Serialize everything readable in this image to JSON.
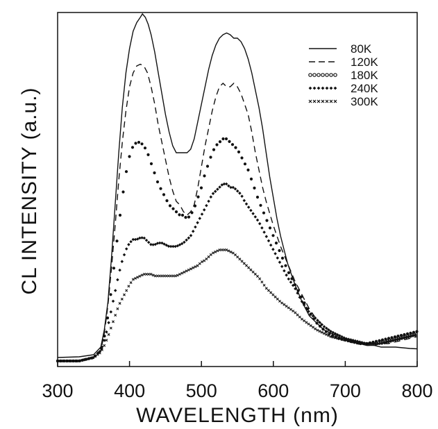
{
  "chart_data": {
    "type": "line",
    "title": "",
    "xlabel": "WAVELENGTH  (nm)",
    "ylabel": "CL INTENSITY  (a.u.)",
    "xlim": [
      300,
      800
    ],
    "ylim": [
      0,
      1
    ],
    "x_ticks": [
      "300",
      "400",
      "500",
      "600",
      "700",
      "800"
    ],
    "y_ticks": [],
    "grid": false,
    "legend_position": "top-right",
    "series": [
      {
        "name": "80K",
        "style": "solid",
        "x": [
          300,
          330,
          350,
          360,
          365,
          370,
          375,
          380,
          385,
          390,
          395,
          400,
          405,
          410,
          415,
          418,
          422,
          426,
          430,
          435,
          440,
          445,
          450,
          455,
          460,
          465,
          470,
          475,
          480,
          485,
          490,
          495,
          500,
          505,
          510,
          515,
          520,
          525,
          530,
          535,
          540,
          545,
          550,
          555,
          560,
          565,
          570,
          575,
          580,
          585,
          590,
          595,
          600,
          605,
          610,
          615,
          620,
          630,
          640,
          650,
          660,
          670,
          680,
          690,
          700,
          710,
          720,
          730,
          740,
          750,
          760,
          770,
          780,
          790,
          800
        ],
        "y": [
          0.01,
          0.012,
          0.018,
          0.04,
          0.09,
          0.17,
          0.3,
          0.45,
          0.6,
          0.73,
          0.83,
          0.9,
          0.95,
          0.975,
          0.99,
          1.0,
          0.99,
          0.97,
          0.94,
          0.89,
          0.83,
          0.77,
          0.71,
          0.66,
          0.62,
          0.6,
          0.6,
          0.6,
          0.6,
          0.61,
          0.64,
          0.69,
          0.74,
          0.79,
          0.84,
          0.88,
          0.91,
          0.93,
          0.94,
          0.945,
          0.94,
          0.93,
          0.93,
          0.92,
          0.9,
          0.87,
          0.83,
          0.78,
          0.73,
          0.67,
          0.6,
          0.53,
          0.47,
          0.41,
          0.36,
          0.32,
          0.28,
          0.22,
          0.17,
          0.13,
          0.11,
          0.09,
          0.08,
          0.07,
          0.06,
          0.055,
          0.05,
          0.045,
          0.045,
          0.04,
          0.04,
          0.04,
          0.038,
          0.036,
          0.035
        ]
      },
      {
        "name": "120K",
        "style": "dashed",
        "x": [
          300,
          330,
          350,
          360,
          365,
          370,
          375,
          380,
          385,
          390,
          395,
          400,
          405,
          410,
          415,
          420,
          425,
          430,
          435,
          440,
          445,
          450,
          455,
          460,
          465,
          470,
          475,
          480,
          485,
          490,
          495,
          500,
          505,
          510,
          515,
          520,
          525,
          530,
          535,
          540,
          545,
          550,
          555,
          560,
          565,
          570,
          575,
          580,
          585,
          590,
          600,
          610,
          620,
          630,
          640,
          650,
          660,
          670,
          680,
          690,
          700,
          710,
          720,
          730,
          740,
          750,
          760,
          770,
          780,
          790,
          800
        ],
        "y": [
          0.0,
          0.0,
          0.01,
          0.03,
          0.08,
          0.16,
          0.27,
          0.39,
          0.52,
          0.63,
          0.72,
          0.79,
          0.83,
          0.85,
          0.855,
          0.85,
          0.83,
          0.79,
          0.74,
          0.68,
          0.63,
          0.58,
          0.53,
          0.49,
          0.46,
          0.45,
          0.43,
          0.42,
          0.43,
          0.45,
          0.5,
          0.56,
          0.62,
          0.67,
          0.72,
          0.76,
          0.79,
          0.8,
          0.79,
          0.79,
          0.8,
          0.79,
          0.77,
          0.74,
          0.71,
          0.66,
          0.6,
          0.55,
          0.5,
          0.46,
          0.39,
          0.33,
          0.28,
          0.23,
          0.19,
          0.15,
          0.12,
          0.1,
          0.085,
          0.075,
          0.065,
          0.055,
          0.05,
          0.045,
          0.045,
          0.05,
          0.05,
          0.055,
          0.06,
          0.065,
          0.07
        ]
      },
      {
        "name": "180K",
        "style": "dotted",
        "x": [
          300,
          330,
          350,
          360,
          365,
          370,
          375,
          380,
          385,
          390,
          395,
          400,
          405,
          410,
          415,
          420,
          425,
          430,
          435,
          440,
          445,
          450,
          455,
          460,
          465,
          470,
          475,
          480,
          485,
          490,
          495,
          500,
          505,
          510,
          515,
          520,
          525,
          530,
          535,
          540,
          545,
          550,
          555,
          560,
          565,
          570,
          575,
          580,
          590,
          600,
          610,
          620,
          630,
          640,
          650,
          660,
          670,
          680,
          690,
          700,
          710,
          720,
          730,
          740,
          750,
          760,
          770,
          780,
          790,
          800
        ],
        "y": [
          0.0,
          0.0,
          0.01,
          0.03,
          0.07,
          0.13,
          0.21,
          0.3,
          0.39,
          0.47,
          0.54,
          0.59,
          0.62,
          0.63,
          0.63,
          0.62,
          0.6,
          0.57,
          0.54,
          0.51,
          0.49,
          0.47,
          0.45,
          0.44,
          0.43,
          0.42,
          0.42,
          0.41,
          0.42,
          0.44,
          0.47,
          0.5,
          0.54,
          0.57,
          0.6,
          0.62,
          0.63,
          0.64,
          0.64,
          0.63,
          0.62,
          0.61,
          0.59,
          0.57,
          0.55,
          0.52,
          0.49,
          0.46,
          0.41,
          0.36,
          0.31,
          0.26,
          0.22,
          0.18,
          0.14,
          0.11,
          0.09,
          0.075,
          0.065,
          0.06,
          0.055,
          0.05,
          0.05,
          0.055,
          0.06,
          0.065,
          0.07,
          0.075,
          0.08,
          0.085
        ]
      },
      {
        "name": "240K",
        "style": "cross-dotted",
        "x": [
          300,
          330,
          350,
          360,
          365,
          370,
          375,
          380,
          385,
          390,
          395,
          400,
          405,
          410,
          415,
          420,
          425,
          430,
          435,
          440,
          445,
          450,
          455,
          460,
          465,
          470,
          475,
          480,
          485,
          490,
          495,
          500,
          505,
          510,
          515,
          520,
          525,
          530,
          535,
          540,
          545,
          550,
          555,
          560,
          570,
          580,
          590,
          600,
          610,
          620,
          630,
          640,
          650,
          660,
          670,
          680,
          690,
          700,
          710,
          720,
          730,
          740,
          750,
          760,
          770,
          780,
          790,
          800
        ],
        "y": [
          0.0,
          0.0,
          0.01,
          0.03,
          0.06,
          0.1,
          0.15,
          0.2,
          0.25,
          0.29,
          0.32,
          0.34,
          0.35,
          0.35,
          0.355,
          0.355,
          0.345,
          0.335,
          0.335,
          0.34,
          0.34,
          0.335,
          0.33,
          0.33,
          0.33,
          0.335,
          0.34,
          0.35,
          0.36,
          0.38,
          0.4,
          0.42,
          0.44,
          0.46,
          0.48,
          0.49,
          0.5,
          0.51,
          0.51,
          0.5,
          0.5,
          0.49,
          0.48,
          0.46,
          0.43,
          0.4,
          0.36,
          0.32,
          0.28,
          0.24,
          0.21,
          0.17,
          0.14,
          0.12,
          0.1,
          0.085,
          0.075,
          0.065,
          0.06,
          0.055,
          0.05,
          0.05,
          0.05,
          0.055,
          0.06,
          0.065,
          0.07,
          0.075
        ]
      },
      {
        "name": "300K",
        "style": "x-dotted",
        "x": [
          300,
          330,
          350,
          360,
          365,
          370,
          375,
          380,
          385,
          390,
          395,
          400,
          405,
          410,
          415,
          420,
          425,
          430,
          435,
          440,
          445,
          450,
          455,
          460,
          465,
          470,
          475,
          480,
          485,
          490,
          495,
          500,
          505,
          510,
          515,
          520,
          525,
          530,
          535,
          540,
          545,
          550,
          555,
          560,
          570,
          580,
          590,
          600,
          610,
          620,
          630,
          640,
          650,
          660,
          670,
          680,
          690,
          700,
          710,
          720,
          730,
          740,
          750,
          760,
          770,
          780,
          790,
          800
        ],
        "y": [
          0.0,
          0.0,
          0.01,
          0.025,
          0.045,
          0.07,
          0.1,
          0.13,
          0.16,
          0.18,
          0.2,
          0.22,
          0.235,
          0.24,
          0.245,
          0.25,
          0.25,
          0.25,
          0.245,
          0.245,
          0.245,
          0.245,
          0.245,
          0.245,
          0.245,
          0.25,
          0.255,
          0.26,
          0.265,
          0.27,
          0.275,
          0.285,
          0.29,
          0.3,
          0.31,
          0.315,
          0.32,
          0.32,
          0.32,
          0.315,
          0.31,
          0.3,
          0.29,
          0.28,
          0.26,
          0.24,
          0.21,
          0.19,
          0.17,
          0.155,
          0.14,
          0.12,
          0.105,
          0.09,
          0.08,
          0.07,
          0.065,
          0.06,
          0.055,
          0.05,
          0.05,
          0.05,
          0.055,
          0.06,
          0.065,
          0.07,
          0.075,
          0.08
        ]
      }
    ]
  }
}
